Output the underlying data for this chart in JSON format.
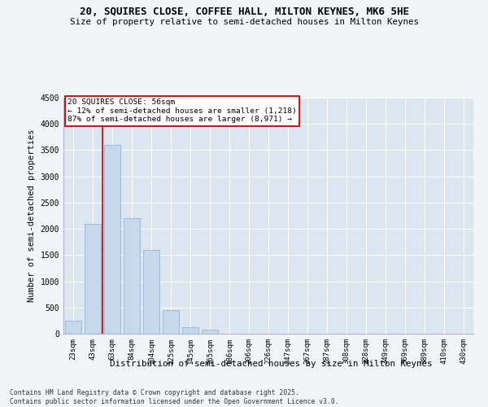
{
  "title1": "20, SQUIRES CLOSE, COFFEE HALL, MILTON KEYNES, MK6 5HE",
  "title2": "Size of property relative to semi-detached houses in Milton Keynes",
  "xlabel": "Distribution of semi-detached houses by size in Milton Keynes",
  "ylabel": "Number of semi-detached properties",
  "categories": [
    "23sqm",
    "43sqm",
    "63sqm",
    "84sqm",
    "104sqm",
    "125sqm",
    "145sqm",
    "165sqm",
    "186sqm",
    "206sqm",
    "226sqm",
    "247sqm",
    "267sqm",
    "287sqm",
    "308sqm",
    "328sqm",
    "349sqm",
    "369sqm",
    "389sqm",
    "410sqm",
    "430sqm"
  ],
  "values": [
    250,
    2100,
    3600,
    2200,
    1600,
    450,
    120,
    70,
    5,
    0,
    0,
    0,
    0,
    0,
    0,
    0,
    0,
    0,
    0,
    0,
    0
  ],
  "bar_color": "#c8d8ec",
  "bar_edge_color": "#9ab4d2",
  "vline_color": "#cc0000",
  "annotation_title": "20 SQUIRES CLOSE: 56sqm",
  "annotation_line1": "← 12% of semi-detached houses are smaller (1,218)",
  "annotation_line2": "87% of semi-detached houses are larger (8,971) →",
  "annotation_box_color": "#ffffff",
  "annotation_box_edge": "#cc0000",
  "ylim": [
    0,
    4500
  ],
  "yticks": [
    0,
    500,
    1000,
    1500,
    2000,
    2500,
    3000,
    3500,
    4000,
    4500
  ],
  "bg_color": "#dce6f0",
  "fig_bg_color": "#f2f5f8",
  "footer1": "Contains HM Land Registry data © Crown copyright and database right 2025.",
  "footer2": "Contains public sector information licensed under the Open Government Licence v3.0."
}
